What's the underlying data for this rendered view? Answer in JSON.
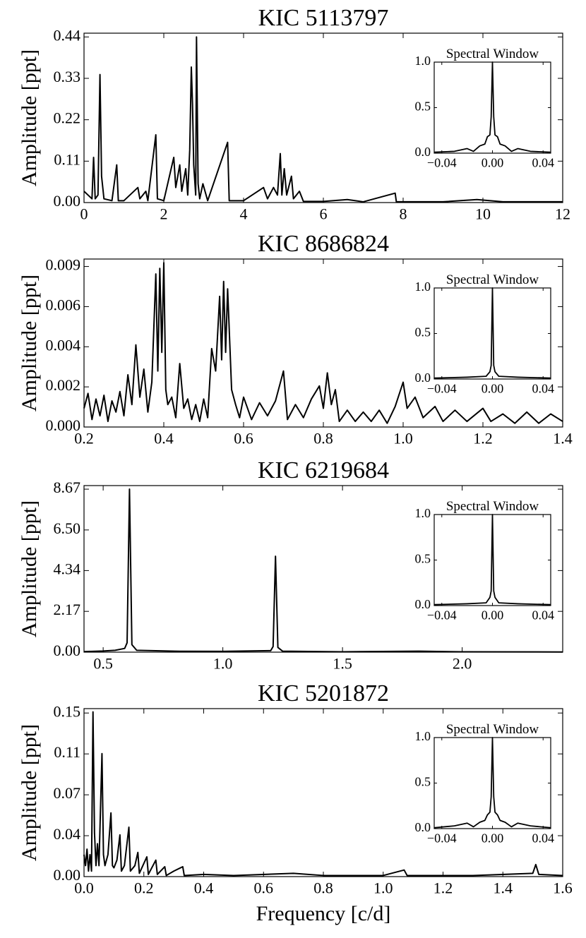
{
  "chart_data": [
    {
      "type": "line",
      "title": "KIC 5113797",
      "ylabel": "Amplitude [ppt]",
      "color": "#000000",
      "xlim": [
        0,
        12
      ],
      "xticks": [
        0,
        2,
        4,
        6,
        8,
        10,
        12
      ],
      "ylim": [
        0,
        0.45
      ],
      "yticks": [
        {
          "value": 0,
          "label": "0.00"
        },
        0.11,
        0.22,
        0.33,
        0.44
      ],
      "x": [
        0,
        0.1,
        0.2,
        0.24,
        0.28,
        0.35,
        0.4,
        0.44,
        0.5,
        0.7,
        0.82,
        0.86,
        1.0,
        1.35,
        1.4,
        1.55,
        1.6,
        1.8,
        1.84,
        2.0,
        2.25,
        2.3,
        2.4,
        2.45,
        2.55,
        2.6,
        2.65,
        2.69,
        2.72,
        2.75,
        2.8,
        2.82,
        2.86,
        2.9,
        2.98,
        3.1,
        3.6,
        3.64,
        4.0,
        4.5,
        4.6,
        4.75,
        4.85,
        4.92,
        4.96,
        5.02,
        5.08,
        5.2,
        5.25,
        5.4,
        5.5,
        6.0,
        6.6,
        7.0,
        7.8,
        7.83,
        9.0,
        9.85,
        10.5,
        12
      ],
      "values": [
        0.03,
        0.02,
        0.01,
        0.12,
        0.01,
        0.02,
        0.34,
        0.07,
        0.01,
        0.005,
        0.1,
        0.005,
        0.005,
        0.04,
        0.01,
        0.03,
        0.005,
        0.18,
        0.01,
        0.005,
        0.12,
        0.04,
        0.1,
        0.03,
        0.09,
        0.02,
        0.14,
        0.36,
        0.26,
        0.1,
        0.02,
        0.44,
        0.05,
        0.01,
        0.05,
        0.005,
        0.16,
        0.005,
        0.005,
        0.04,
        0.01,
        0.04,
        0.02,
        0.13,
        0.02,
        0.09,
        0.02,
        0.07,
        0.01,
        0.03,
        0.003,
        0.003,
        0.008,
        0.002,
        0.025,
        0.002,
        0.002,
        0.008,
        0.002,
        0.002
      ],
      "inset": {
        "type": "line",
        "title": "Spectral Window",
        "color": "#000000",
        "xlim": [
          -0.046,
          0.046
        ],
        "xticks": [
          {
            "value": -0.04,
            "label": "−0.04"
          },
          {
            "value": 0,
            "label": "0.00"
          },
          0.04
        ],
        "ylim": [
          0,
          1.0
        ],
        "yticks": [
          {
            "value": 0,
            "label": "0.0"
          },
          0.5,
          {
            "value": 1,
            "label": "1.0"
          }
        ],
        "x": [
          -0.046,
          -0.03,
          -0.02,
          -0.015,
          -0.01,
          -0.006,
          -0.004,
          -0.002,
          -0.001,
          0,
          0.001,
          0.002,
          0.004,
          0.006,
          0.01,
          0.015,
          0.02,
          0.03,
          0.046
        ],
        "values": [
          0.01,
          0.02,
          0.05,
          0.02,
          0.08,
          0.1,
          0.18,
          0.2,
          0.4,
          1.0,
          0.4,
          0.2,
          0.18,
          0.1,
          0.08,
          0.02,
          0.05,
          0.02,
          0.01
        ]
      }
    },
    {
      "type": "line",
      "title": "KIC 8686824",
      "ylabel": "Amplitude [ppt]",
      "color": "#000000",
      "xlim": [
        0.2,
        1.4
      ],
      "xticks": [
        0.2,
        0.4,
        0.6,
        0.8,
        {
          "value": 1,
          "label": "1.0"
        },
        1.2,
        1.4
      ],
      "ylim": [
        0,
        0.009
      ],
      "yticks": [
        {
          "value": 0,
          "label": "0.000"
        },
        {
          "value": 0.00215,
          "label": "0.002"
        },
        {
          "value": 0.0043,
          "label": "0.004"
        },
        {
          "value": 0.00645,
          "label": "0.006"
        },
        {
          "value": 0.0086,
          "label": "0.009"
        }
      ],
      "x": [
        0.2,
        0.21,
        0.22,
        0.23,
        0.24,
        0.25,
        0.26,
        0.27,
        0.28,
        0.29,
        0.3,
        0.31,
        0.32,
        0.33,
        0.34,
        0.35,
        0.36,
        0.37,
        0.38,
        0.385,
        0.39,
        0.395,
        0.4,
        0.405,
        0.41,
        0.42,
        0.43,
        0.44,
        0.45,
        0.46,
        0.47,
        0.48,
        0.49,
        0.5,
        0.51,
        0.52,
        0.53,
        0.54,
        0.545,
        0.55,
        0.555,
        0.56,
        0.57,
        0.58,
        0.59,
        0.6,
        0.62,
        0.64,
        0.66,
        0.68,
        0.7,
        0.71,
        0.73,
        0.75,
        0.77,
        0.79,
        0.8,
        0.81,
        0.82,
        0.83,
        0.84,
        0.86,
        0.88,
        0.9,
        0.92,
        0.94,
        0.96,
        0.98,
        1.0,
        1.01,
        1.03,
        1.05,
        1.08,
        1.1,
        1.13,
        1.16,
        1.2,
        1.22,
        1.25,
        1.28,
        1.31,
        1.34,
        1.37,
        1.4
      ],
      "values": [
        0.001,
        0.0018,
        0.0004,
        0.0015,
        0.0006,
        0.0017,
        0.0003,
        0.0014,
        0.0008,
        0.0019,
        0.0006,
        0.0028,
        0.0012,
        0.0044,
        0.0016,
        0.0031,
        0.0008,
        0.0024,
        0.0082,
        0.003,
        0.0085,
        0.004,
        0.0088,
        0.002,
        0.0012,
        0.0016,
        0.0005,
        0.0034,
        0.001,
        0.0015,
        0.0004,
        0.0012,
        0.0003,
        0.0015,
        0.0005,
        0.0042,
        0.003,
        0.007,
        0.0036,
        0.0078,
        0.004,
        0.0074,
        0.002,
        0.0012,
        0.0005,
        0.0016,
        0.0004,
        0.0013,
        0.0006,
        0.0014,
        0.003,
        0.0004,
        0.0012,
        0.0005,
        0.0015,
        0.0022,
        0.001,
        0.0029,
        0.0012,
        0.002,
        0.0003,
        0.0009,
        0.0003,
        0.0008,
        0.0003,
        0.0009,
        0.0002,
        0.0011,
        0.0024,
        0.001,
        0.0016,
        0.0005,
        0.0011,
        0.0003,
        0.0009,
        0.0003,
        0.001,
        0.0003,
        0.0007,
        0.0002,
        0.0008,
        0.0002,
        0.0007,
        0.0003
      ],
      "inset": {
        "type": "line",
        "title": "Spectral Window",
        "color": "#000000",
        "xlim": [
          -0.046,
          0.046
        ],
        "xticks": [
          {
            "value": -0.04,
            "label": "−0.04"
          },
          {
            "value": 0,
            "label": "0.00"
          },
          0.04
        ],
        "ylim": [
          0,
          1.0
        ],
        "yticks": [
          {
            "value": 0,
            "label": "0.0"
          },
          0.5,
          {
            "value": 1,
            "label": "1.0"
          }
        ],
        "x": [
          -0.046,
          -0.02,
          -0.005,
          -0.002,
          -0.001,
          0,
          0.001,
          0.002,
          0.005,
          0.02,
          0.046
        ],
        "values": [
          0.01,
          0.02,
          0.03,
          0.08,
          0.15,
          1.0,
          0.15,
          0.08,
          0.03,
          0.02,
          0.01
        ]
      }
    },
    {
      "type": "line",
      "title": "KIC 6219684",
      "ylabel": "Amplitude [ppt]",
      "color": "#000000",
      "xlim": [
        0.42,
        2.42
      ],
      "xticks": [
        0.5,
        {
          "value": 1,
          "label": "1.0"
        },
        1.5,
        {
          "value": 2,
          "label": "2.0"
        }
      ],
      "ylim": [
        0,
        8.86
      ],
      "yticks": [
        {
          "value": 0,
          "label": "0.00"
        },
        2.17,
        4.34,
        {
          "value": 6.5,
          "label": "6.50"
        },
        8.67
      ],
      "x": [
        0.42,
        0.5,
        0.55,
        0.59,
        0.6,
        0.61,
        0.62,
        0.64,
        0.8,
        1.0,
        1.2,
        1.21,
        1.22,
        1.23,
        1.25,
        1.5,
        1.82,
        2.0,
        2.42
      ],
      "values": [
        0.03,
        0.06,
        0.1,
        0.2,
        0.5,
        8.67,
        0.4,
        0.1,
        0.05,
        0.04,
        0.08,
        0.3,
        5.1,
        0.25,
        0.05,
        0.02,
        0.05,
        0.02,
        0.01
      ],
      "inset": {
        "type": "line",
        "title": "Spectral Window",
        "color": "#000000",
        "xlim": [
          -0.046,
          0.046
        ],
        "xticks": [
          {
            "value": -0.04,
            "label": "−0.04"
          },
          {
            "value": 0,
            "label": "0.00"
          },
          0.04
        ],
        "ylim": [
          0,
          1.0
        ],
        "yticks": [
          {
            "value": 0,
            "label": "0.0"
          },
          0.5,
          {
            "value": 1,
            "label": "1.0"
          }
        ],
        "x": [
          -0.046,
          -0.02,
          -0.005,
          -0.002,
          -0.001,
          0,
          0.001,
          0.002,
          0.005,
          0.02,
          0.046
        ],
        "values": [
          0.01,
          0.02,
          0.03,
          0.09,
          0.16,
          1.0,
          0.16,
          0.09,
          0.03,
          0.02,
          0.01
        ]
      }
    },
    {
      "type": "line",
      "title": "KIC 5201872",
      "ylabel": "Amplitude [ppt]",
      "xlabel": "Frequency [c/d]",
      "color": "#000000",
      "xlim": [
        0,
        1.6
      ],
      "xticks": [
        {
          "value": 0,
          "label": "0.0"
        },
        0.2,
        0.4,
        0.6,
        0.8,
        {
          "value": 1,
          "label": "1.0"
        },
        1.2,
        1.4,
        1.6
      ],
      "ylim": [
        0,
        0.153
      ],
      "yticks": [
        {
          "value": 0,
          "label": "0.00"
        },
        {
          "value": 0.03725,
          "label": "0.04"
        },
        {
          "value": 0.0745,
          "label": "0.07"
        },
        {
          "value": 0.11175,
          "label": "0.11"
        },
        {
          "value": 0.149,
          "label": "0.15"
        }
      ],
      "x": [
        0,
        0.005,
        0.01,
        0.015,
        0.02,
        0.025,
        0.03,
        0.035,
        0.04,
        0.045,
        0.05,
        0.06,
        0.065,
        0.07,
        0.08,
        0.09,
        0.095,
        0.1,
        0.11,
        0.12,
        0.125,
        0.135,
        0.15,
        0.155,
        0.17,
        0.18,
        0.185,
        0.21,
        0.215,
        0.24,
        0.245,
        0.27,
        0.275,
        0.3,
        0.33,
        0.335,
        0.4,
        0.5,
        0.7,
        0.8,
        1.0,
        1.07,
        1.08,
        1.3,
        1.5,
        1.51,
        1.52,
        1.6
      ],
      "values": [
        0.02,
        0.01,
        0.025,
        0.005,
        0.02,
        0.005,
        0.15,
        0.04,
        0.01,
        0.03,
        0.01,
        0.112,
        0.02,
        0.01,
        0.02,
        0.058,
        0.01,
        0.008,
        0.015,
        0.038,
        0.005,
        0.01,
        0.045,
        0.005,
        0.01,
        0.022,
        0.003,
        0.018,
        0.002,
        0.015,
        0.002,
        0.009,
        0.001,
        0.005,
        0.009,
        0.001,
        0.002,
        0.001,
        0.003,
        0.001,
        0.001,
        0.006,
        0.001,
        0.001,
        0.003,
        0.011,
        0.002,
        0.001
      ],
      "inset": {
        "type": "line",
        "title": "Spectral Window",
        "color": "#000000",
        "xlim": [
          -0.046,
          0.046
        ],
        "xticks": [
          {
            "value": -0.04,
            "label": "−0.04"
          },
          {
            "value": 0,
            "label": "0.00"
          },
          0.04
        ],
        "ylim": [
          0,
          1.0
        ],
        "yticks": [
          {
            "value": 0,
            "label": "0.0"
          },
          0.5,
          {
            "value": 1,
            "label": "1.0"
          }
        ],
        "x": [
          -0.046,
          -0.03,
          -0.02,
          -0.015,
          -0.01,
          -0.006,
          -0.004,
          -0.002,
          -0.001,
          0,
          0.001,
          0.002,
          0.004,
          0.006,
          0.01,
          0.015,
          0.02,
          0.03,
          0.046
        ],
        "values": [
          0.01,
          0.03,
          0.06,
          0.02,
          0.07,
          0.09,
          0.15,
          0.18,
          0.35,
          1.0,
          0.35,
          0.18,
          0.15,
          0.09,
          0.07,
          0.02,
          0.06,
          0.03,
          0.01
        ]
      }
    }
  ]
}
